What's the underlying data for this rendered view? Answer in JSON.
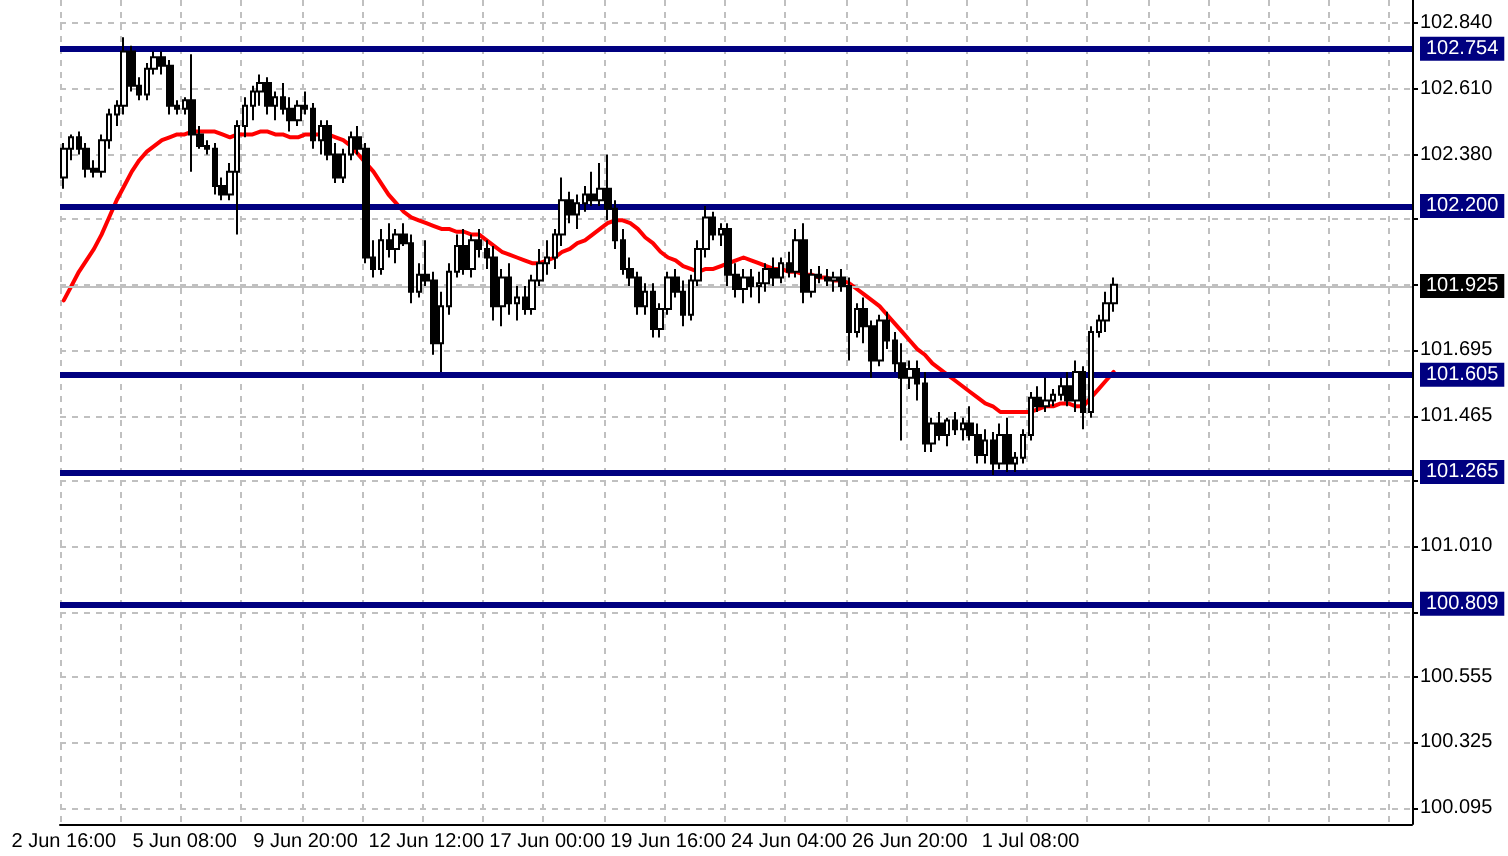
{
  "chart_data": {
    "type": "candlestick",
    "categories": [
      "2 Jun 16:00",
      null,
      null,
      null,
      null,
      null,
      null,
      null,
      null,
      null,
      null,
      null,
      null,
      null,
      null,
      null,
      "5 Jun 08:00",
      null,
      null,
      null,
      null,
      null,
      null,
      null,
      null,
      null,
      null,
      null,
      null,
      null,
      null,
      null,
      "9 Jun 20:00",
      null,
      null,
      null,
      null,
      null,
      null,
      null,
      null,
      null,
      null,
      null,
      null,
      null,
      null,
      null,
      "12 Jun 12:00",
      null,
      null,
      null,
      null,
      null,
      null,
      null,
      null,
      null,
      null,
      null,
      null,
      null,
      null,
      null,
      "17 Jun 00:00",
      null,
      null,
      null,
      null,
      null,
      null,
      null,
      null,
      null,
      null,
      null,
      null,
      null,
      null,
      null,
      "19 Jun 16:00",
      null,
      null,
      null,
      null,
      null,
      null,
      null,
      null,
      null,
      null,
      null,
      null,
      null,
      null,
      null,
      "24 Jun 04:00",
      null,
      null,
      null,
      null,
      null,
      null,
      null,
      null,
      null,
      null,
      null,
      null,
      null,
      null,
      null,
      "26 Jun 20:00",
      null,
      null,
      null,
      null,
      null,
      null,
      null,
      null,
      null,
      null,
      null,
      null,
      null,
      null,
      null,
      "1 Jul 08:00",
      null,
      null,
      null,
      null,
      null,
      null,
      null,
      null,
      null,
      null,
      null
    ],
    "ohlc": [
      [
        102.3,
        102.42,
        102.26,
        102.4
      ],
      [
        102.4,
        102.45,
        102.36,
        102.44
      ],
      [
        102.44,
        102.46,
        102.38,
        102.4
      ],
      [
        102.4,
        102.42,
        102.3,
        102.33
      ],
      [
        102.33,
        102.36,
        102.3,
        102.32
      ],
      [
        102.32,
        102.45,
        102.3,
        102.43
      ],
      [
        102.43,
        102.54,
        102.4,
        102.52
      ],
      [
        102.52,
        102.57,
        102.48,
        102.55
      ],
      [
        102.55,
        102.79,
        102.52,
        102.74
      ],
      [
        102.74,
        102.76,
        102.6,
        102.62
      ],
      [
        102.62,
        102.65,
        102.57,
        102.59
      ],
      [
        102.59,
        102.7,
        102.57,
        102.68
      ],
      [
        102.68,
        102.74,
        102.66,
        102.72
      ],
      [
        102.72,
        102.74,
        102.66,
        102.69
      ],
      [
        102.69,
        102.71,
        102.52,
        102.55
      ],
      [
        102.55,
        102.57,
        102.52,
        102.54
      ],
      [
        102.54,
        102.58,
        102.52,
        102.57
      ],
      [
        102.57,
        102.73,
        102.32,
        102.45
      ],
      [
        102.45,
        102.48,
        102.4,
        102.41
      ],
      [
        102.41,
        102.43,
        102.38,
        102.4
      ],
      [
        102.4,
        102.42,
        102.24,
        102.27
      ],
      [
        102.27,
        102.3,
        102.22,
        102.24
      ],
      [
        102.24,
        102.35,
        102.22,
        102.32
      ],
      [
        102.32,
        102.5,
        102.1,
        102.48
      ],
      [
        102.48,
        102.58,
        102.44,
        102.55
      ],
      [
        102.55,
        102.62,
        102.5,
        102.6
      ],
      [
        102.6,
        102.66,
        102.55,
        102.63
      ],
      [
        102.63,
        102.65,
        102.52,
        102.55
      ],
      [
        102.55,
        102.6,
        102.5,
        102.58
      ],
      [
        102.58,
        102.63,
        102.52,
        102.54
      ],
      [
        102.54,
        102.58,
        102.46,
        102.5
      ],
      [
        102.5,
        102.57,
        102.48,
        102.55
      ],
      [
        102.55,
        102.6,
        102.52,
        102.54
      ],
      [
        102.54,
        102.56,
        102.4,
        102.43
      ],
      [
        102.43,
        102.5,
        102.38,
        102.48
      ],
      [
        102.48,
        102.5,
        102.36,
        102.38
      ],
      [
        102.38,
        102.42,
        102.28,
        102.3
      ],
      [
        102.3,
        102.4,
        102.28,
        102.38
      ],
      [
        102.38,
        102.46,
        102.36,
        102.44
      ],
      [
        102.44,
        102.48,
        102.38,
        102.4
      ],
      [
        102.4,
        102.42,
        102.0,
        102.02
      ],
      [
        102.02,
        102.08,
        101.95,
        101.98
      ],
      [
        101.98,
        102.12,
        101.96,
        102.08
      ],
      [
        102.08,
        102.14,
        102.02,
        102.05
      ],
      [
        102.05,
        102.12,
        102.0,
        102.1
      ],
      [
        102.1,
        102.14,
        102.06,
        102.07
      ],
      [
        102.07,
        102.1,
        101.86,
        101.9
      ],
      [
        101.9,
        102.0,
        101.88,
        101.96
      ],
      [
        101.96,
        102.08,
        101.92,
        101.94
      ],
      [
        101.94,
        101.97,
        101.68,
        101.72
      ],
      [
        101.72,
        101.9,
        101.62,
        101.85
      ],
      [
        101.85,
        102.0,
        101.82,
        101.97
      ],
      [
        101.97,
        102.1,
        101.95,
        102.06
      ],
      [
        102.06,
        102.12,
        101.96,
        101.98
      ],
      [
        101.98,
        102.1,
        101.95,
        102.08
      ],
      [
        102.08,
        102.12,
        102.02,
        102.05
      ],
      [
        102.05,
        102.08,
        101.98,
        102.02
      ],
      [
        102.02,
        102.06,
        101.8,
        101.85
      ],
      [
        101.85,
        101.98,
        101.78,
        101.95
      ],
      [
        101.95,
        102.0,
        101.82,
        101.86
      ],
      [
        101.86,
        101.92,
        101.8,
        101.88
      ],
      [
        101.88,
        101.92,
        101.82,
        101.84
      ],
      [
        101.84,
        101.96,
        101.82,
        101.94
      ],
      [
        101.94,
        102.05,
        101.92,
        102.0
      ],
      [
        102.0,
        102.08,
        101.96,
        102.02
      ],
      [
        102.02,
        102.12,
        101.98,
        102.1
      ],
      [
        102.1,
        102.3,
        102.06,
        102.22
      ],
      [
        102.22,
        102.25,
        102.14,
        102.17
      ],
      [
        102.17,
        102.24,
        102.12,
        102.21
      ],
      [
        102.21,
        102.27,
        102.18,
        102.24
      ],
      [
        102.24,
        102.32,
        102.2,
        102.22
      ],
      [
        102.22,
        102.35,
        102.2,
        102.26
      ],
      [
        102.26,
        102.38,
        102.15,
        102.19
      ],
      [
        102.19,
        102.22,
        102.05,
        102.08
      ],
      [
        102.08,
        102.12,
        101.96,
        101.98
      ],
      [
        101.98,
        102.02,
        101.92,
        101.95
      ],
      [
        101.95,
        101.97,
        101.82,
        101.85
      ],
      [
        101.85,
        101.93,
        101.82,
        101.9
      ],
      [
        101.9,
        101.93,
        101.74,
        101.77
      ],
      [
        101.77,
        101.86,
        101.74,
        101.84
      ],
      [
        101.84,
        101.97,
        101.82,
        101.95
      ],
      [
        101.95,
        101.98,
        101.88,
        101.9
      ],
      [
        101.9,
        101.94,
        101.78,
        101.82
      ],
      [
        101.82,
        101.96,
        101.8,
        101.94
      ],
      [
        101.94,
        102.08,
        101.92,
        102.05
      ],
      [
        102.05,
        102.2,
        102.02,
        102.16
      ],
      [
        102.16,
        102.18,
        102.08,
        102.1
      ],
      [
        102.1,
        102.14,
        102.06,
        102.12
      ],
      [
        102.12,
        102.14,
        101.92,
        101.96
      ],
      [
        101.96,
        102.0,
        101.88,
        101.91
      ],
      [
        101.91,
        101.98,
        101.86,
        101.95
      ],
      [
        101.95,
        101.98,
        101.88,
        101.92
      ],
      [
        101.92,
        101.97,
        101.86,
        101.93
      ],
      [
        101.93,
        102.0,
        101.9,
        101.98
      ],
      [
        101.98,
        102.02,
        101.92,
        101.95
      ],
      [
        101.95,
        102.02,
        101.93,
        102.0
      ],
      [
        102.0,
        102.04,
        101.95,
        101.97
      ],
      [
        101.97,
        102.12,
        101.95,
        102.08
      ],
      [
        102.08,
        102.14,
        101.86,
        101.9
      ],
      [
        101.9,
        101.98,
        101.88,
        101.96
      ],
      [
        101.96,
        101.99,
        101.93,
        101.95
      ],
      [
        101.95,
        101.98,
        101.92,
        101.94
      ],
      [
        101.94,
        101.97,
        101.9,
        101.95
      ],
      [
        101.95,
        101.98,
        101.9,
        101.92
      ],
      [
        101.92,
        101.95,
        101.66,
        101.76
      ],
      [
        101.76,
        101.86,
        101.74,
        101.84
      ],
      [
        101.84,
        101.88,
        101.72,
        101.78
      ],
      [
        101.78,
        101.8,
        101.6,
        101.66
      ],
      [
        101.66,
        101.82,
        101.64,
        101.8
      ],
      [
        101.8,
        101.83,
        101.7,
        101.73
      ],
      [
        101.73,
        101.76,
        101.62,
        101.65
      ],
      [
        101.65,
        101.72,
        101.38,
        101.6
      ],
      [
        101.6,
        101.66,
        101.56,
        101.63
      ],
      [
        101.63,
        101.66,
        101.52,
        101.58
      ],
      [
        101.58,
        101.62,
        101.34,
        101.37
      ],
      [
        101.37,
        101.46,
        101.34,
        101.44
      ],
      [
        101.44,
        101.48,
        101.38,
        101.4
      ],
      [
        101.4,
        101.46,
        101.36,
        101.45
      ],
      [
        101.45,
        101.48,
        101.4,
        101.42
      ],
      [
        101.42,
        101.46,
        101.38,
        101.44
      ],
      [
        101.44,
        101.5,
        101.38,
        101.4
      ],
      [
        101.4,
        101.44,
        101.3,
        101.33
      ],
      [
        101.33,
        101.42,
        101.3,
        101.38
      ],
      [
        101.38,
        101.41,
        101.26,
        101.3
      ],
      [
        101.3,
        101.44,
        101.28,
        101.4
      ],
      [
        101.4,
        101.46,
        101.27,
        101.3
      ],
      [
        101.3,
        101.34,
        101.27,
        101.32
      ],
      [
        101.32,
        101.42,
        101.3,
        101.4
      ],
      [
        101.4,
        101.55,
        101.38,
        101.53
      ],
      [
        101.53,
        101.57,
        101.48,
        101.5
      ],
      [
        101.5,
        101.6,
        101.48,
        101.52
      ],
      [
        101.52,
        101.56,
        101.5,
        101.54
      ],
      [
        101.54,
        101.6,
        101.52,
        101.57
      ],
      [
        101.57,
        101.62,
        101.5,
        101.52
      ],
      [
        101.52,
        101.66,
        101.48,
        101.62
      ],
      [
        101.62,
        101.64,
        101.42,
        101.48
      ],
      [
        101.48,
        101.78,
        101.46,
        101.76
      ],
      [
        101.76,
        101.82,
        101.74,
        101.8
      ],
      [
        101.8,
        101.9,
        101.76,
        101.86
      ],
      [
        101.86,
        101.95,
        101.83,
        101.925
      ]
    ],
    "series": [
      {
        "type": "line",
        "color": "#ff0000",
        "values": [
          101.87,
          101.92,
          101.97,
          102.01,
          102.05,
          102.1,
          102.16,
          102.22,
          102.27,
          102.32,
          102.36,
          102.39,
          102.41,
          102.43,
          102.44,
          102.45,
          102.45,
          102.46,
          102.46,
          102.46,
          102.46,
          102.45,
          102.44,
          102.45,
          102.45,
          102.45,
          102.46,
          102.46,
          102.45,
          102.45,
          102.44,
          102.44,
          102.45,
          102.45,
          102.45,
          102.45,
          102.44,
          102.43,
          102.41,
          102.38,
          102.35,
          102.32,
          102.28,
          102.24,
          102.21,
          102.18,
          102.16,
          102.15,
          102.14,
          102.13,
          102.12,
          102.12,
          102.11,
          102.11,
          102.1,
          102.1,
          102.08,
          102.06,
          102.04,
          102.03,
          102.02,
          102.01,
          102.0,
          102.0,
          102.01,
          102.02,
          102.04,
          102.05,
          102.07,
          102.08,
          102.1,
          102.12,
          102.14,
          102.15,
          102.15,
          102.14,
          102.12,
          102.09,
          102.07,
          102.04,
          102.02,
          102.01,
          101.99,
          101.98,
          101.97,
          101.98,
          101.98,
          101.99,
          102.0,
          102.01,
          102.02,
          102.01,
          102.0,
          101.99,
          101.98,
          101.98,
          101.97,
          101.97,
          101.96,
          101.96,
          101.95,
          101.95,
          101.94,
          101.94,
          101.93,
          101.91,
          101.89,
          101.87,
          101.85,
          101.82,
          101.79,
          101.76,
          101.73,
          101.7,
          101.68,
          101.65,
          101.63,
          101.61,
          101.59,
          101.57,
          101.55,
          101.53,
          101.51,
          101.5,
          101.48,
          101.48,
          101.48,
          101.48,
          101.48,
          101.49,
          101.5,
          101.5,
          101.51,
          101.51,
          101.5,
          101.5,
          101.53,
          101.56,
          101.59,
          101.62
        ]
      }
    ],
    "ylim": [
      100.04,
      102.92
    ],
    "yticks": [
      {
        "value": 102.84,
        "label": "102.840"
      },
      {
        "value": 102.61,
        "label": "102.610"
      },
      {
        "value": 102.38,
        "label": "102.380"
      },
      {
        "value": 102.155,
        "label": null
      },
      {
        "value": 101.925,
        "label": null
      },
      {
        "value": 101.695,
        "label": "101.695"
      },
      {
        "value": 101.465,
        "label": "101.465"
      },
      {
        "value": 101.24,
        "label": null
      },
      {
        "value": 101.01,
        "label": "101.010"
      },
      {
        "value": 100.78,
        "label": null
      },
      {
        "value": 100.555,
        "label": "100.555"
      },
      {
        "value": 100.325,
        "label": "100.325"
      },
      {
        "value": 100.095,
        "label": "100.095"
      }
    ],
    "ref_lines": [
      {
        "axis": "y",
        "value": 102.754,
        "label": "102.754",
        "color": "#000080",
        "line_style": "solid"
      },
      {
        "axis": "y",
        "value": 102.2,
        "label": "102.200",
        "color": "#000080",
        "line_style": "solid"
      },
      {
        "axis": "y",
        "value": 101.925,
        "label": "101.925",
        "color": "#c0c0c0",
        "line_style": "solid"
      },
      {
        "axis": "y",
        "value": 101.605,
        "label": "101.605",
        "color": "#000080",
        "line_style": "solid"
      },
      {
        "axis": "y",
        "value": 101.265,
        "label": "101.265",
        "color": "#000080",
        "line_style": "solid"
      },
      {
        "axis": "y",
        "value": 100.809,
        "label": "100.809",
        "color": "#000080",
        "line_style": "solid"
      }
    ],
    "grid": true,
    "marker": "none",
    "line_style": "solid"
  }
}
